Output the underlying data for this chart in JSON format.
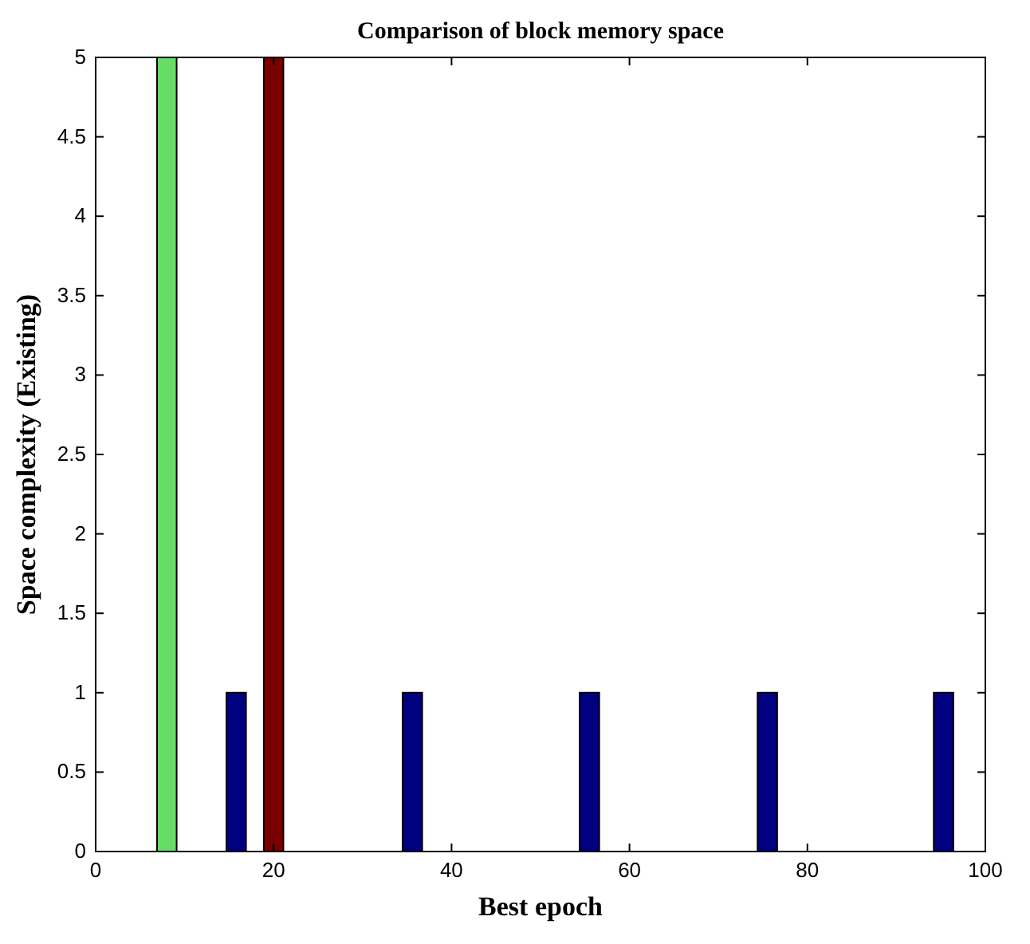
{
  "chart_data": {
    "type": "bar",
    "title": "Comparison of block memory space",
    "xlabel": "Best epoch",
    "ylabel": "Space complexity (Existing)",
    "series": [
      {
        "color": "#66dd66",
        "x": [
          8
        ],
        "values": [
          5
        ]
      },
      {
        "color": "#7a0000",
        "x": [
          20
        ],
        "values": [
          5
        ]
      },
      {
        "color": "#000080",
        "x": [
          15.8,
          35.6,
          55.5,
          75.5,
          95.3
        ],
        "values": [
          1,
          1,
          1,
          1,
          1
        ]
      }
    ],
    "xlim": [
      0,
      100
    ],
    "xticks": [
      0,
      20,
      40,
      60,
      80,
      100
    ],
    "ylim": [
      0,
      5
    ],
    "yticks": [
      0,
      0.5,
      1,
      1.5,
      2,
      2.5,
      3,
      3.5,
      4,
      4.5,
      5
    ],
    "grid": false
  }
}
